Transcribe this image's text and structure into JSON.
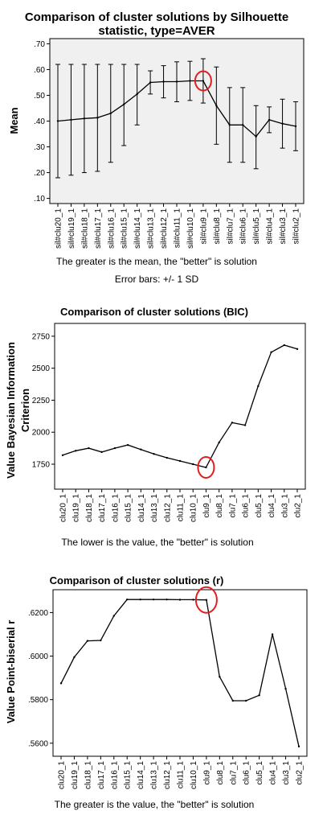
{
  "chart_data": [
    {
      "type": "line",
      "title": "Comparison of cluster solutions by Silhouette",
      "subtitle": "statistic, type=AVER",
      "ylabel": "Mean",
      "xlabel": "",
      "ylim": [
        0.08,
        0.72
      ],
      "yticks": [
        0.1,
        0.2,
        0.3,
        0.4,
        0.5,
        0.6,
        0.7
      ],
      "ytick_labels": [
        ".10",
        ".20",
        ".30",
        ".40",
        ".50",
        ".60",
        ".70"
      ],
      "grid": false,
      "categories": [
        "sil#clu20_1",
        "sil#clu19_1",
        "sil#clu18_1",
        "sil#clu17_1",
        "sil#clu16_1",
        "sil#clu15_1",
        "sil#clu14_1",
        "sil#clu13_1",
        "sil#clu12_1",
        "sil#clu11_1",
        "sil#clu10_1",
        "sil#clu9_1",
        "sil#clu8_1",
        "sil#clu7_1",
        "sil#clu6_1",
        "sil#clu5_1",
        "sil#clu4_1",
        "sil#clu3_1",
        "sil#clu2_1"
      ],
      "values": [
        0.4,
        0.405,
        0.41,
        0.413,
        0.43,
        0.465,
        0.505,
        0.55,
        0.553,
        0.553,
        0.556,
        0.556,
        0.46,
        0.385,
        0.385,
        0.34,
        0.405,
        0.39,
        0.38
      ],
      "error_upper": [
        0.62,
        0.62,
        0.62,
        0.62,
        0.62,
        0.62,
        0.62,
        0.595,
        0.615,
        0.63,
        0.632,
        0.642,
        0.61,
        0.53,
        0.53,
        0.46,
        0.455,
        0.485,
        0.475
      ],
      "error_lower": [
        0.18,
        0.19,
        0.2,
        0.205,
        0.24,
        0.305,
        0.385,
        0.505,
        0.49,
        0.475,
        0.48,
        0.47,
        0.31,
        0.24,
        0.24,
        0.215,
        0.355,
        0.295,
        0.285
      ],
      "highlight_index": 11,
      "plot_background": "#f0f0f0",
      "highlight_color": "#e02020",
      "notes": [
        "The greater is the mean, the \"better\" is solution",
        "Error bars: +/- 1 SD"
      ]
    },
    {
      "type": "line",
      "title": "Comparison of cluster solutions (BIC)",
      "ylabel": "Value Bayesian Information",
      "ylabel2": "Criterion",
      "xlabel": "",
      "ylim": [
        1555,
        2850
      ],
      "yticks": [
        1750,
        2000,
        2250,
        2500,
        2750
      ],
      "ytick_labels": [
        "1750",
        "2000",
        "2250",
        "2500",
        "2750"
      ],
      "grid": false,
      "categories": [
        "clu20_1",
        "clu19_1",
        "clu18_1",
        "clu17_1",
        "clu16_1",
        "clu15_1",
        "clu14_1",
        "clu13_1",
        "clu12_1",
        "clu11_1",
        "clu10_1",
        "clu9_1",
        "clu8_1",
        "clu7_1",
        "clu6_1",
        "clu5_1",
        "clu4_1",
        "clu3_1",
        "clu2_1"
      ],
      "values": [
        1820,
        1855,
        1875,
        1845,
        1875,
        1900,
        1865,
        1830,
        1800,
        1775,
        1750,
        1725,
        1920,
        2075,
        2055,
        2360,
        2625,
        2680,
        2650
      ],
      "highlight_index": 11,
      "highlight_color": "#e02020",
      "notes": [
        "The lower is the value, the \"better\" is solution"
      ]
    },
    {
      "type": "line",
      "title": "Comparison of cluster solutions (r)",
      "ylabel": "Value Point-biserial r",
      "xlabel": "",
      "ylim": [
        0.554,
        0.6305
      ],
      "yticks": [
        0.56,
        0.58,
        0.6,
        0.62
      ],
      "ytick_labels": [
        ".5600",
        ".5800",
        ".6000",
        ".6200"
      ],
      "grid": false,
      "categories": [
        "clu20_1",
        "clu19_1",
        "clu18_1",
        "clu17_1",
        "clu16_1",
        "clu15_1",
        "clu14_1",
        "clu13_1",
        "clu12_1",
        "clu11_1",
        "clu10_1",
        "clu9_1",
        "clu8_1",
        "clu7_1",
        "clu6_1",
        "clu5_1",
        "clu4_1",
        "clu3_1",
        "clu2_1"
      ],
      "values": [
        0.5875,
        0.5995,
        0.607,
        0.6072,
        0.6185,
        0.626,
        0.626,
        0.626,
        0.626,
        0.6259,
        0.6259,
        0.6258,
        0.5905,
        0.5795,
        0.5795,
        0.582,
        0.61,
        0.585,
        0.5585
      ],
      "highlight_index": 11,
      "highlight_color": "#e02020",
      "notes": [
        "The greater is the value, the \"better\" is solution"
      ]
    }
  ]
}
